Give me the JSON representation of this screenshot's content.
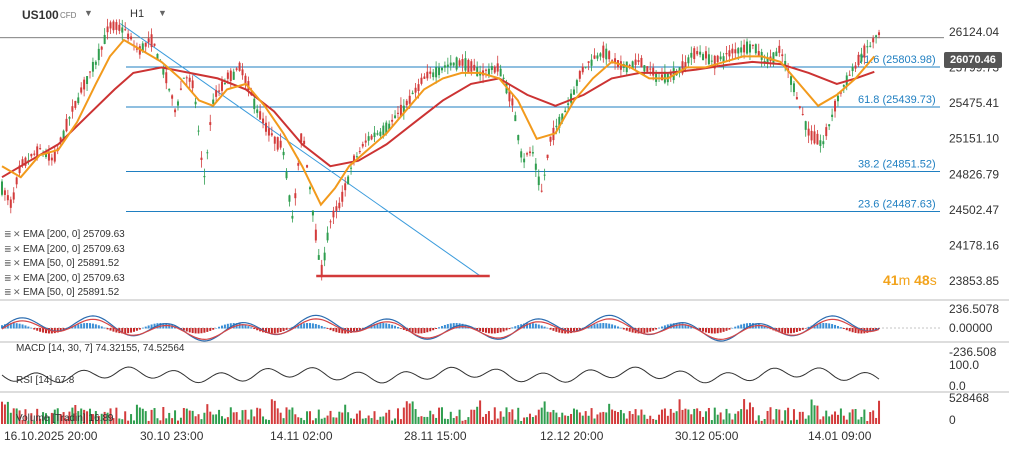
{
  "header": {
    "symbol": "US100",
    "type": "CFD",
    "timeframe": "H1"
  },
  "indicators": [
    {
      "label": "EMA [200, 0] 25709.63",
      "color": "#cc3333"
    },
    {
      "label": "EMA [200, 0] 25709.63",
      "color": "#cc3333"
    },
    {
      "label": "EMA [50, 0] 25891.52",
      "color": "#f29a1c"
    },
    {
      "label": "EMA [200, 0] 25709.63",
      "color": "#cc3333"
    },
    {
      "label": "EMA [50, 0] 25891.52",
      "color": "#f29a1c"
    }
  ],
  "current_price": "26070.46",
  "countdown": {
    "min": "41",
    "min_unit": "m",
    "sec": "48",
    "sec_unit": "s"
  },
  "chart_data": {
    "type": "line",
    "main": {
      "ylim": [
        23700,
        26250
      ],
      "y_ticks": [
        "26124.04",
        "25799.73",
        "25475.41",
        "25151.10",
        "24826.79",
        "24502.47",
        "24178.16",
        "23853.85"
      ],
      "x_labels": [
        "16.10.2025  20:00",
        "30.10  23:00",
        "14.11  02:00",
        "28.11  15:00",
        "12.12  20:00",
        "30.12  05:00",
        "14.01  09:00"
      ],
      "fib_levels": [
        {
          "label": "71.6 (25803.98)",
          "value": 25803.98
        },
        {
          "label": "61.8 (25439.73)",
          "value": 25439.73
        },
        {
          "label": "38.2 (24851.52)",
          "value": 24851.52
        },
        {
          "label": "23.6 (24487.63)",
          "value": 24487.63
        }
      ],
      "horizontal_line": 26070.46,
      "trendline": [
        [
          0.126,
          26200
        ],
        [
          0.51,
          23900
        ]
      ],
      "support_line": {
        "value": 23900,
        "from": 0.335,
        "to": 0.52
      },
      "price_path": [
        [
          0.0,
          24700
        ],
        [
          0.01,
          24550
        ],
        [
          0.02,
          24900
        ],
        [
          0.04,
          25050
        ],
        [
          0.055,
          24950
        ],
        [
          0.07,
          25300
        ],
        [
          0.085,
          25600
        ],
        [
          0.1,
          25850
        ],
        [
          0.115,
          26180
        ],
        [
          0.13,
          26150
        ],
        [
          0.145,
          25950
        ],
        [
          0.16,
          26050
        ],
        [
          0.175,
          25700
        ],
        [
          0.185,
          25400
        ],
        [
          0.195,
          25750
        ],
        [
          0.205,
          25600
        ],
        [
          0.215,
          24750
        ],
        [
          0.225,
          25500
        ],
        [
          0.24,
          25700
        ],
        [
          0.255,
          25800
        ],
        [
          0.27,
          25450
        ],
        [
          0.285,
          25200
        ],
        [
          0.3,
          25050
        ],
        [
          0.31,
          24400
        ],
        [
          0.32,
          25250
        ],
        [
          0.33,
          24600
        ],
        [
          0.34,
          23900
        ],
        [
          0.35,
          24400
        ],
        [
          0.36,
          24550
        ],
        [
          0.375,
          24950
        ],
        [
          0.39,
          25150
        ],
        [
          0.41,
          25250
        ],
        [
          0.43,
          25450
        ],
        [
          0.45,
          25700
        ],
        [
          0.47,
          25800
        ],
        [
          0.49,
          25850
        ],
        [
          0.51,
          25750
        ],
        [
          0.53,
          25800
        ],
        [
          0.545,
          25450
        ],
        [
          0.555,
          24950
        ],
        [
          0.565,
          25050
        ],
        [
          0.575,
          24650
        ],
        [
          0.585,
          25150
        ],
        [
          0.6,
          25400
        ],
        [
          0.62,
          25800
        ],
        [
          0.64,
          25950
        ],
        [
          0.66,
          25800
        ],
        [
          0.68,
          25850
        ],
        [
          0.7,
          25700
        ],
        [
          0.72,
          25750
        ],
        [
          0.74,
          25950
        ],
        [
          0.76,
          25850
        ],
        [
          0.78,
          25950
        ],
        [
          0.8,
          26000
        ],
        [
          0.815,
          25850
        ],
        [
          0.83,
          25950
        ],
        [
          0.845,
          25600
        ],
        [
          0.86,
          25200
        ],
        [
          0.875,
          25100
        ],
        [
          0.89,
          25500
        ],
        [
          0.905,
          25750
        ],
        [
          0.92,
          25950
        ],
        [
          0.935,
          26100
        ]
      ],
      "ema50": [
        [
          0.0,
          24900
        ],
        [
          0.02,
          24800
        ],
        [
          0.04,
          25000
        ],
        [
          0.06,
          25050
        ],
        [
          0.08,
          25300
        ],
        [
          0.1,
          25650
        ],
        [
          0.115,
          25900
        ],
        [
          0.13,
          26050
        ],
        [
          0.15,
          25950
        ],
        [
          0.17,
          25850
        ],
        [
          0.19,
          25700
        ],
        [
          0.21,
          25500
        ],
        [
          0.225,
          25450
        ],
        [
          0.24,
          25600
        ],
        [
          0.26,
          25650
        ],
        [
          0.28,
          25450
        ],
        [
          0.3,
          25200
        ],
        [
          0.32,
          24900
        ],
        [
          0.34,
          24550
        ],
        [
          0.355,
          24700
        ],
        [
          0.37,
          24900
        ],
        [
          0.39,
          25050
        ],
        [
          0.41,
          25200
        ],
        [
          0.43,
          25400
        ],
        [
          0.45,
          25600
        ],
        [
          0.47,
          25700
        ],
        [
          0.49,
          25750
        ],
        [
          0.51,
          25750
        ],
        [
          0.53,
          25700
        ],
        [
          0.55,
          25500
        ],
        [
          0.57,
          25150
        ],
        [
          0.59,
          25200
        ],
        [
          0.61,
          25500
        ],
        [
          0.63,
          25700
        ],
        [
          0.65,
          25850
        ],
        [
          0.67,
          25800
        ],
        [
          0.69,
          25700
        ],
        [
          0.71,
          25700
        ],
        [
          0.73,
          25800
        ],
        [
          0.75,
          25800
        ],
        [
          0.77,
          25850
        ],
        [
          0.79,
          25900
        ],
        [
          0.81,
          25900
        ],
        [
          0.83,
          25850
        ],
        [
          0.85,
          25650
        ],
        [
          0.87,
          25450
        ],
        [
          0.89,
          25550
        ],
        [
          0.91,
          25700
        ],
        [
          0.93,
          25900
        ]
      ],
      "ema200": [
        [
          0.0,
          24800
        ],
        [
          0.03,
          24950
        ],
        [
          0.06,
          25100
        ],
        [
          0.09,
          25350
        ],
        [
          0.12,
          25600
        ],
        [
          0.14,
          25750
        ],
        [
          0.17,
          25800
        ],
        [
          0.2,
          25750
        ],
        [
          0.23,
          25700
        ],
        [
          0.26,
          25600
        ],
        [
          0.29,
          25400
        ],
        [
          0.32,
          25100
        ],
        [
          0.35,
          24900
        ],
        [
          0.38,
          24950
        ],
        [
          0.41,
          25100
        ],
        [
          0.44,
          25300
        ],
        [
          0.47,
          25500
        ],
        [
          0.5,
          25650
        ],
        [
          0.53,
          25700
        ],
        [
          0.56,
          25550
        ],
        [
          0.59,
          25450
        ],
        [
          0.62,
          25550
        ],
        [
          0.65,
          25700
        ],
        [
          0.68,
          25750
        ],
        [
          0.71,
          25750
        ],
        [
          0.74,
          25780
        ],
        [
          0.77,
          25820
        ],
        [
          0.8,
          25850
        ],
        [
          0.83,
          25830
        ],
        [
          0.86,
          25750
        ],
        [
          0.89,
          25650
        ],
        [
          0.91,
          25700
        ],
        [
          0.93,
          25760
        ]
      ]
    },
    "macd": {
      "label": "MACD [14, 30, 7]  74.32155,  74.52564",
      "y_ticks": [
        "236.5078",
        "0.00000",
        "-236.508"
      ]
    },
    "rsi": {
      "label": "RSI [14]  67.8",
      "y_ticks": [
        "100.0",
        "0.0"
      ]
    },
    "volume": {
      "label": "Volume [Tradin]  16.89",
      "y_ticks": [
        "528468",
        "0"
      ]
    }
  }
}
